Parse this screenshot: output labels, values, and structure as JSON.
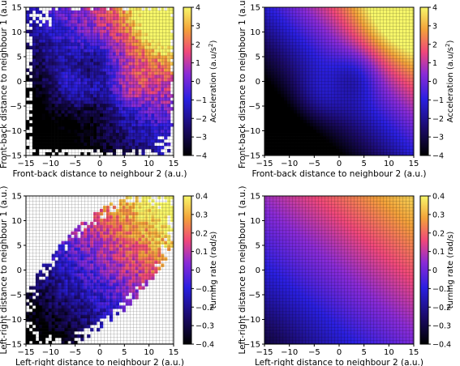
{
  "chart_data": [
    {
      "type": "heatmap",
      "xlabel": "Front-back distance to neighbour 2 (a.u.)",
      "ylabel": "Front-back distance to neighbour 1 (a.u.)",
      "xlim": [
        -15,
        15
      ],
      "ylim": [
        -15,
        15
      ],
      "xticks": [
        "−15",
        "−10",
        "−5",
        "0",
        "5",
        "10",
        "15"
      ],
      "yticks": [
        "−15",
        "−10",
        "−5",
        "0",
        "5",
        "10",
        "15"
      ],
      "colorbar": {
        "label_text": "Acceleration (a.u/s",
        "label_superscript": "2",
        "label_close": ")",
        "range": [
          -4,
          4
        ],
        "ticks": [
          "4",
          "3",
          "2",
          "1",
          "0",
          "−1",
          "−2",
          "−3",
          "−4"
        ]
      },
      "colormap": "gnuplot2-like (black-blue-magenta-orange-yellow)",
      "data_kind": "experimental",
      "field": "front-back acceleration: high (yellow) at top-right, bright lobes at left and right of center, dark band along x≈-1 and low values at bottom-left; sparse white cells outside sampled region",
      "grid": true
    },
    {
      "type": "heatmap",
      "xlabel": "Front-back distance to neighbour 2 (a.u.)",
      "ylabel": "Front-back distance to neighbour 1 (a.u.)",
      "xlim": [
        -15,
        15
      ],
      "ylim": [
        -15,
        15
      ],
      "xticks": [
        "−15",
        "−10",
        "−5",
        "0",
        "5",
        "10",
        "15"
      ],
      "yticks": [
        "−15",
        "−10",
        "−5",
        "0",
        "5",
        "10",
        "15"
      ],
      "colorbar": {
        "label_text": "Acceleration (a.u/s",
        "label_superscript": "2",
        "label_close": ")",
        "range": [
          -4,
          4
        ],
        "ticks": [
          "4",
          "3",
          "2",
          "1",
          "0",
          "−1",
          "−2",
          "−3",
          "−4"
        ]
      },
      "colormap": "gnuplot2-like (black-blue-magenta-orange-yellow)",
      "data_kind": "model",
      "field": "smooth front-back acceleration: yellow at top-right corner, blue minimum near (3,1), black at bottom-left",
      "grid": true
    },
    {
      "type": "heatmap",
      "xlabel": "Left-right distance to neighbour 2 (a.u.)",
      "ylabel": "Left-right distance to neighbour 1 (a.u.)",
      "xlim": [
        -15,
        15
      ],
      "ylim": [
        -15,
        15
      ],
      "xticks": [
        "−15",
        "−10",
        "−5",
        "0",
        "5",
        "10",
        "15"
      ],
      "yticks": [
        "−15",
        "−10",
        "−5",
        "0",
        "5",
        "10",
        "15"
      ],
      "colorbar": {
        "label_text": "turning rate (rad/s)",
        "label_superscript": "",
        "label_close": "",
        "range": [
          -0.4,
          0.4
        ],
        "ticks": [
          "0.4",
          "0.3",
          "0.2",
          "0.1",
          "0",
          "−0.1",
          "−0.2",
          "−0.3",
          "−0.4"
        ]
      },
      "colormap": "gnuplot2-like (black-blue-magenta-orange-yellow)",
      "data_kind": "experimental",
      "field": "turning rate increases along the diagonal from bottom-left (black) to top-right (yellow); data confined to a diagonal elliptical band",
      "grid": true
    },
    {
      "type": "heatmap",
      "xlabel": "Left-right distance to neighbour 2 (a.u.)",
      "ylabel": "Left-right distance to neighbour 1 (a.u.)",
      "xlim": [
        -15,
        15
      ],
      "ylim": [
        -15,
        15
      ],
      "xticks": [
        "−15",
        "−10",
        "−5",
        "0",
        "5",
        "10",
        "15"
      ],
      "yticks": [
        "−15",
        "−10",
        "−5",
        "0",
        "5",
        "10",
        "15"
      ],
      "colorbar": {
        "label_text": "turning rate (rad/s)",
        "label_superscript": "",
        "label_close": "",
        "range": [
          -0.4,
          0.4
        ],
        "ticks": [
          "0.4",
          "0.3",
          "0.2",
          "0.1",
          "0",
          "−0.1",
          "−0.2",
          "−0.3",
          "−0.4"
        ]
      },
      "colormap": "gnuplot2-like (black-blue-magenta-orange-yellow)",
      "data_kind": "model",
      "field": "smooth turning rate: orange at top-left/top, blue-black toward bottom-left, magenta at right",
      "grid": true
    }
  ]
}
